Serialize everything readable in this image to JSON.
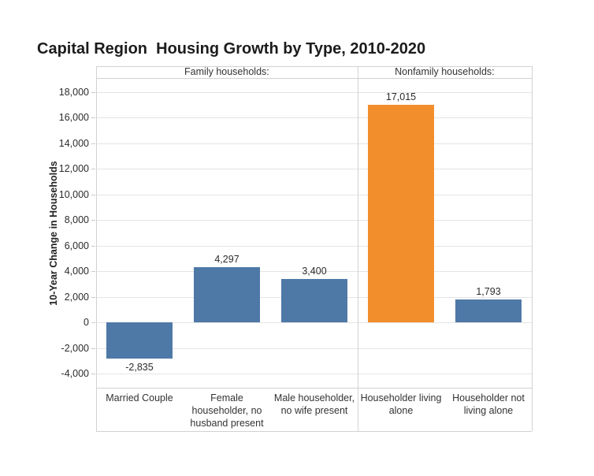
{
  "chart_data": {
    "type": "bar",
    "title": "Capital Region  Housing Growth by Type, 2010-2020",
    "xlabel": "",
    "ylabel": "10-Year Change in Households",
    "ylim": [
      -5100,
      19100
    ],
    "grid": "horizontal",
    "legend": "none",
    "yticks": [
      {
        "value": 18000,
        "label": "18,000"
      },
      {
        "value": 16000,
        "label": "16,000"
      },
      {
        "value": 14000,
        "label": "14,000"
      },
      {
        "value": 12000,
        "label": "12,000"
      },
      {
        "value": 10000,
        "label": "10,000"
      },
      {
        "value": 8000,
        "label": "8,000"
      },
      {
        "value": 6000,
        "label": "6,000"
      },
      {
        "value": 4000,
        "label": "4,000"
      },
      {
        "value": 2000,
        "label": "2,000"
      },
      {
        "value": 0,
        "label": "0"
      },
      {
        "value": -2000,
        "label": "-2,000"
      },
      {
        "value": -4000,
        "label": "-4,000"
      }
    ],
    "panels": [
      {
        "header": "Family households:",
        "bars": [
          {
            "category": "Married Couple",
            "value": -2835,
            "label": "-2,835",
            "color": "#4e79a7"
          },
          {
            "category": "Female householder, no husband present",
            "value": 4297,
            "label": "4,297",
            "color": "#4e79a7"
          },
          {
            "category": "Male householder, no wife present",
            "value": 3400,
            "label": "3,400",
            "color": "#4e79a7"
          }
        ]
      },
      {
        "header": "Nonfamily households:",
        "bars": [
          {
            "category": "Householder living alone",
            "value": 17015,
            "label": "17,015",
            "color": "#f28e2b"
          },
          {
            "category": "Householder not living alone",
            "value": 1793,
            "label": "1,793",
            "color": "#4e79a7"
          }
        ]
      }
    ],
    "colors": {
      "bar_blue": "#4e79a7",
      "bar_orange": "#f28e2b",
      "grid": "#e4e4e4",
      "border": "#d2d2d2"
    }
  }
}
